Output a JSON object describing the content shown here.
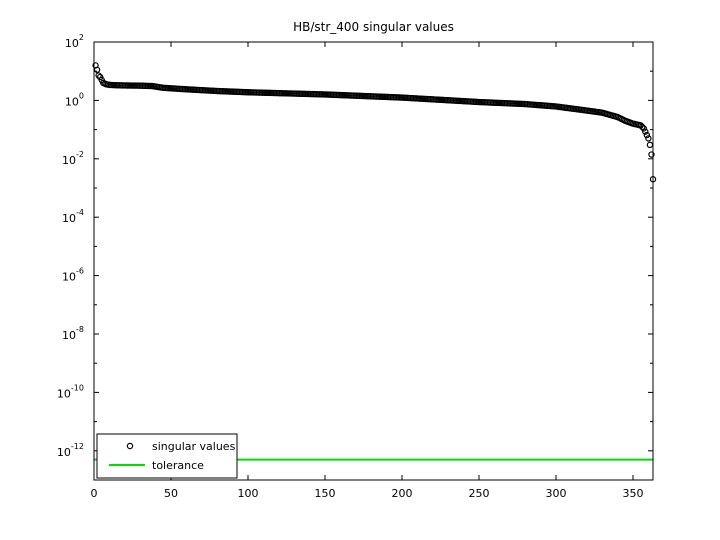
{
  "chart_data": {
    "type": "scatter",
    "title": "HB/str_400 singular values",
    "xlabel": "",
    "ylabel": "",
    "xlim": [
      0,
      363
    ],
    "ylim": [
      1e-13,
      100
    ],
    "yscale": "log",
    "x_ticks": [
      0,
      50,
      100,
      150,
      200,
      250,
      300,
      350
    ],
    "y_ticks": [
      {
        "value": 100.0,
        "base": "10",
        "exp": "2"
      },
      {
        "value": 1.0,
        "base": "10",
        "exp": "0"
      },
      {
        "value": 0.01,
        "base": "10",
        "exp": "-2"
      },
      {
        "value": 0.0001,
        "base": "10",
        "exp": "-4"
      },
      {
        "value": 1e-06,
        "base": "10",
        "exp": "-6"
      },
      {
        "value": 1e-08,
        "base": "10",
        "exp": "-8"
      },
      {
        "value": 1e-10,
        "base": "10",
        "exp": "-10"
      },
      {
        "value": 1e-12,
        "base": "10",
        "exp": "-12"
      }
    ],
    "grid": false,
    "legend_position": "bottom-left",
    "series": [
      {
        "name": "singular values",
        "kind": "markers",
        "color": "#000000",
        "anchors": [
          [
            1,
            15.8
          ],
          [
            2,
            11.2
          ],
          [
            3,
            7.1
          ],
          [
            4,
            6.3
          ],
          [
            5,
            5.0
          ],
          [
            6,
            4.0
          ],
          [
            8,
            3.55
          ],
          [
            10,
            3.4
          ],
          [
            15,
            3.3
          ],
          [
            20,
            3.25
          ],
          [
            30,
            3.2
          ],
          [
            38,
            3.1
          ],
          [
            45,
            2.7
          ],
          [
            60,
            2.4
          ],
          [
            80,
            2.1
          ],
          [
            100,
            1.9
          ],
          [
            150,
            1.6
          ],
          [
            200,
            1.25
          ],
          [
            250,
            0.88
          ],
          [
            280,
            0.75
          ],
          [
            300,
            0.62
          ],
          [
            320,
            0.45
          ],
          [
            330,
            0.38
          ],
          [
            340,
            0.27
          ],
          [
            345,
            0.2
          ],
          [
            350,
            0.16
          ],
          [
            355,
            0.14
          ],
          [
            357,
            0.11
          ],
          [
            358,
            0.085
          ],
          [
            359,
            0.065
          ],
          [
            360,
            0.05
          ],
          [
            361,
            0.03
          ],
          [
            362,
            0.014
          ],
          [
            363,
            0.002
          ]
        ]
      },
      {
        "name": "tolerance",
        "kind": "line",
        "color": "#00dd00",
        "value": 5e-13
      }
    ]
  }
}
